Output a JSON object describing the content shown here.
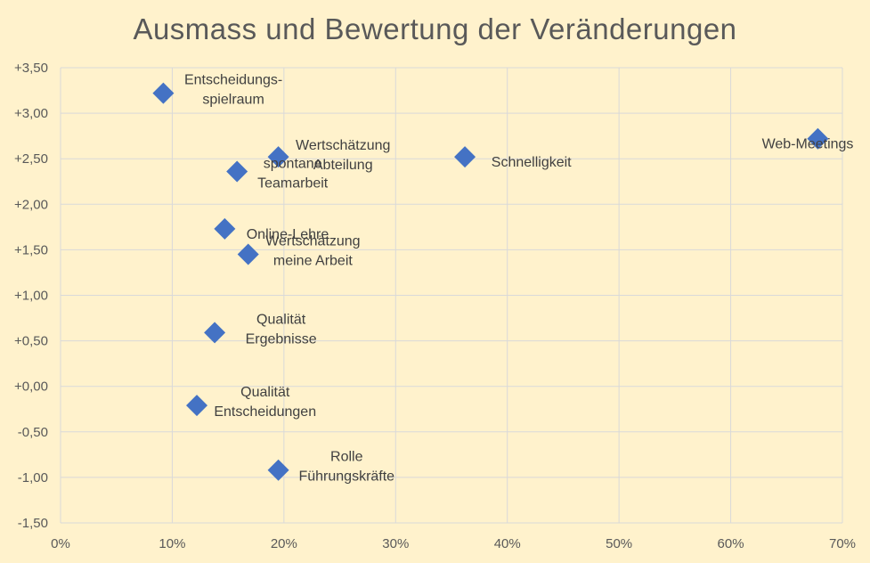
{
  "chart_data": {
    "type": "scatter",
    "title": "Ausmass und Bewertung der Veränderungen",
    "xlabel": "",
    "ylabel": "",
    "xlim": [
      0,
      0.7
    ],
    "ylim": [
      -1.5,
      3.5
    ],
    "x_ticks": [
      0,
      0.1,
      0.2,
      0.3,
      0.4,
      0.5,
      0.6,
      0.7
    ],
    "x_tick_labels": [
      "0%",
      "10%",
      "20%",
      "30%",
      "40%",
      "50%",
      "60%",
      "70%"
    ],
    "y_ticks": [
      -1.5,
      -1.0,
      -0.5,
      0.0,
      0.5,
      1.0,
      1.5,
      2.0,
      2.5,
      3.0,
      3.5
    ],
    "y_tick_labels": [
      "-1,50",
      "-1,00",
      "-0,50",
      "+0,00",
      "+0,50",
      "+1,00",
      "+1,50",
      "+2,00",
      "+2,50",
      "+3,00",
      "+3,50"
    ],
    "grid": true,
    "marker": "diamond",
    "marker_color": "#4472c4",
    "points": [
      {
        "label_lines": [
          "Entscheidungs-",
          "spielraum"
        ],
        "x": 0.092,
        "y": 3.22
      },
      {
        "label_lines": [
          "Wertschätzung",
          "Abteilung"
        ],
        "x": 0.195,
        "y": 2.52
      },
      {
        "label_lines": [
          "spontane",
          "Teamarbeit"
        ],
        "x": 0.158,
        "y": 2.36
      },
      {
        "label_lines": [
          "Schnelligkeit"
        ],
        "x": 0.362,
        "y": 2.52
      },
      {
        "label_lines": [
          "Web-Meetings"
        ],
        "x": 0.678,
        "y": 2.72
      },
      {
        "label_lines": [
          "Online-Lehre"
        ],
        "x": 0.147,
        "y": 1.73
      },
      {
        "label_lines": [
          "Wertschätzung",
          "meine Arbeit"
        ],
        "x": 0.168,
        "y": 1.45
      },
      {
        "label_lines": [
          "Qualität",
          "Ergebnisse"
        ],
        "x": 0.138,
        "y": 0.59
      },
      {
        "label_lines": [
          "Qualität",
          "Entscheidungen"
        ],
        "x": 0.122,
        "y": -0.21
      },
      {
        "label_lines": [
          "Rolle",
          "Führungskräfte"
        ],
        "x": 0.195,
        "y": -0.92
      }
    ]
  }
}
